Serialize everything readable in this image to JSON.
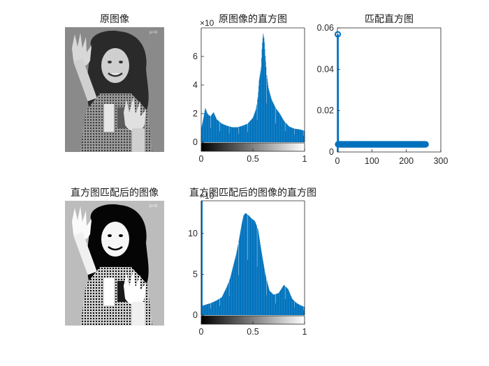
{
  "titles": {
    "original_image": "原图像",
    "original_hist": "原图像的直方图",
    "match_hist": "匹配直方图",
    "matched_image": "直方图匹配后的图像",
    "matched_hist": "直方图匹配后的图像的直方图"
  },
  "watermark": "JU PE",
  "colors": {
    "bar": "#0072BD",
    "axis": "#262626"
  },
  "chart_data": [
    {
      "id": "original_hist",
      "type": "bar",
      "title": "原图像的直方图",
      "x_range": [
        0,
        1
      ],
      "ylim": [
        0,
        8000
      ],
      "y_exponent": "×10",
      "x_ticks": [
        {
          "v": 0,
          "label": "0"
        },
        {
          "v": 0.5,
          "label": "0.5"
        },
        {
          "v": 1,
          "label": "1"
        }
      ],
      "y_ticks": [
        {
          "v": 0,
          "label": "0"
        },
        {
          "v": 2000,
          "label": "2"
        },
        {
          "v": 4000,
          "label": "4"
        },
        {
          "v": 6000,
          "label": "6"
        }
      ],
      "colorbar": "gray",
      "profile": [
        {
          "x": 0.0,
          "y": 900
        },
        {
          "x": 0.02,
          "y": 1600
        },
        {
          "x": 0.04,
          "y": 2400
        },
        {
          "x": 0.06,
          "y": 2000
        },
        {
          "x": 0.09,
          "y": 1800
        },
        {
          "x": 0.12,
          "y": 2100
        },
        {
          "x": 0.15,
          "y": 1600
        },
        {
          "x": 0.2,
          "y": 1300
        },
        {
          "x": 0.25,
          "y": 1150
        },
        {
          "x": 0.3,
          "y": 1050
        },
        {
          "x": 0.35,
          "y": 1050
        },
        {
          "x": 0.4,
          "y": 1150
        },
        {
          "x": 0.45,
          "y": 1300
        },
        {
          "x": 0.5,
          "y": 1700
        },
        {
          "x": 0.53,
          "y": 2300
        },
        {
          "x": 0.55,
          "y": 3200
        },
        {
          "x": 0.56,
          "y": 4300
        },
        {
          "x": 0.58,
          "y": 5200
        },
        {
          "x": 0.59,
          "y": 6800
        },
        {
          "x": 0.6,
          "y": 7600
        },
        {
          "x": 0.61,
          "y": 7200
        },
        {
          "x": 0.62,
          "y": 6000
        },
        {
          "x": 0.63,
          "y": 5000
        },
        {
          "x": 0.65,
          "y": 3800
        },
        {
          "x": 0.68,
          "y": 3000
        },
        {
          "x": 0.72,
          "y": 2400
        },
        {
          "x": 0.76,
          "y": 2000
        },
        {
          "x": 0.8,
          "y": 1500
        },
        {
          "x": 0.85,
          "y": 1100
        },
        {
          "x": 0.9,
          "y": 950
        },
        {
          "x": 0.95,
          "y": 900
        },
        {
          "x": 1.0,
          "y": 800
        }
      ]
    },
    {
      "id": "match_hist",
      "type": "line",
      "title": "匹配直方图",
      "xlim": [
        0,
        300
      ],
      "ylim": [
        0,
        0.06
      ],
      "x_ticks": [
        {
          "v": 0,
          "label": "0"
        },
        {
          "v": 100,
          "label": "100"
        },
        {
          "v": 200,
          "label": "200"
        },
        {
          "v": 300,
          "label": "300"
        }
      ],
      "y_ticks": [
        {
          "v": 0,
          "label": "0"
        },
        {
          "v": 0.02,
          "label": "0.02"
        },
        {
          "v": 0.04,
          "label": "0.04"
        },
        {
          "v": 0.06,
          "label": "0.06"
        }
      ],
      "points": [
        {
          "x": 1,
          "y": 0.0569
        },
        {
          "x": 2,
          "y": 0.0037
        },
        {
          "x": 256,
          "y": 0.0037
        }
      ]
    },
    {
      "id": "matched_hist",
      "type": "bar",
      "title": "直方图匹配后的图像的直方图",
      "x_range": [
        0,
        1
      ],
      "ylim": [
        0,
        14000
      ],
      "y_exponent": "×10",
      "x_ticks": [
        {
          "v": 0,
          "label": "0"
        },
        {
          "v": 0.5,
          "label": "0.5"
        },
        {
          "v": 1,
          "label": "1"
        }
      ],
      "y_ticks": [
        {
          "v": 0,
          "label": "0"
        },
        {
          "v": 5000,
          "label": "5"
        },
        {
          "v": 10000,
          "label": "10"
        }
      ],
      "colorbar": "gray",
      "spike": {
        "x": 0.005,
        "y": 14000
      },
      "profile": [
        {
          "x": 0.0,
          "y": 1100
        },
        {
          "x": 0.05,
          "y": 1300
        },
        {
          "x": 0.1,
          "y": 1500
        },
        {
          "x": 0.15,
          "y": 1800
        },
        {
          "x": 0.2,
          "y": 2200
        },
        {
          "x": 0.25,
          "y": 3500
        },
        {
          "x": 0.28,
          "y": 4500
        },
        {
          "x": 0.31,
          "y": 6000
        },
        {
          "x": 0.34,
          "y": 7500
        },
        {
          "x": 0.37,
          "y": 9500
        },
        {
          "x": 0.39,
          "y": 11000
        },
        {
          "x": 0.41,
          "y": 12200
        },
        {
          "x": 0.43,
          "y": 12500
        },
        {
          "x": 0.46,
          "y": 12200
        },
        {
          "x": 0.49,
          "y": 11800
        },
        {
          "x": 0.52,
          "y": 11500
        },
        {
          "x": 0.55,
          "y": 10500
        },
        {
          "x": 0.58,
          "y": 8000
        },
        {
          "x": 0.62,
          "y": 5000
        },
        {
          "x": 0.66,
          "y": 3000
        },
        {
          "x": 0.7,
          "y": 2500
        },
        {
          "x": 0.75,
          "y": 2700
        },
        {
          "x": 0.8,
          "y": 3700
        },
        {
          "x": 0.84,
          "y": 3200
        },
        {
          "x": 0.88,
          "y": 2000
        },
        {
          "x": 0.92,
          "y": 1500
        },
        {
          "x": 0.96,
          "y": 1200
        },
        {
          "x": 1.0,
          "y": 1000
        }
      ]
    }
  ]
}
